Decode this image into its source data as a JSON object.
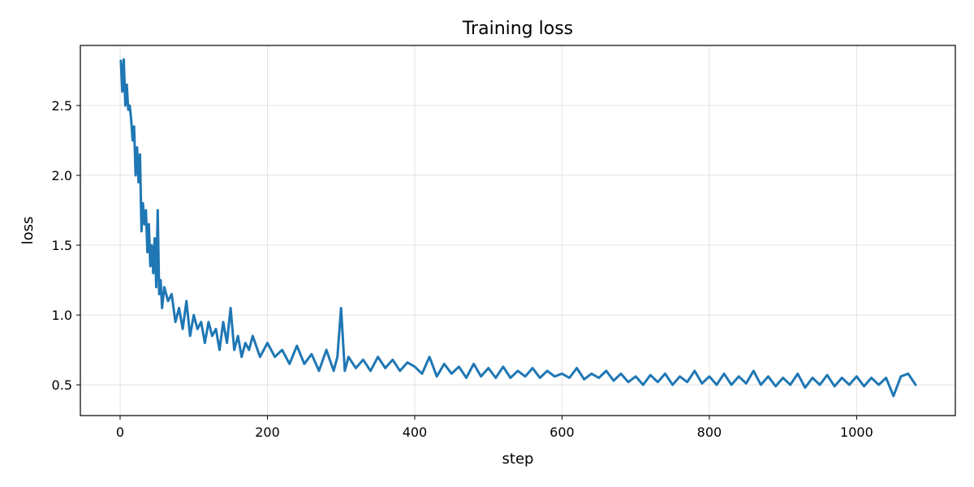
{
  "chart_data": {
    "type": "line",
    "title": "Training loss",
    "xlabel": "step",
    "ylabel": "loss",
    "xlim": [
      -54,
      1134
    ],
    "ylim": [
      0.28,
      2.93
    ],
    "x_ticks": [
      0,
      200,
      400,
      600,
      800,
      1000
    ],
    "x_tick_labels": [
      "0",
      "200",
      "400",
      "600",
      "800",
      "1000"
    ],
    "y_ticks": [
      0.5,
      1.0,
      1.5,
      2.0,
      2.5
    ],
    "y_tick_labels": [
      "0.5",
      "1.0",
      "1.5",
      "2.0",
      "2.5"
    ],
    "grid": true,
    "color": "#1f77b4",
    "series": [
      {
        "x": [
          1,
          3,
          5,
          7,
          9,
          11,
          13,
          15,
          17,
          19,
          21,
          23,
          25,
          27,
          29,
          31,
          33,
          35,
          37,
          39,
          41,
          43,
          45,
          47,
          49,
          51,
          53,
          55,
          57,
          60,
          65,
          70,
          75,
          80,
          85,
          90,
          95,
          100,
          105,
          110,
          115,
          120,
          125,
          130,
          135,
          140,
          145,
          150,
          155,
          160,
          165,
          170,
          175,
          180,
          190,
          200,
          210,
          220,
          230,
          240,
          250,
          260,
          270,
          280,
          290,
          295,
          300,
          305,
          310,
          320,
          330,
          340,
          350,
          360,
          370,
          380,
          390,
          400,
          410,
          420,
          430,
          440,
          450,
          460,
          470,
          480,
          490,
          500,
          510,
          520,
          530,
          540,
          550,
          560,
          570,
          580,
          590,
          600,
          610,
          620,
          630,
          640,
          650,
          660,
          670,
          680,
          690,
          700,
          710,
          720,
          730,
          740,
          750,
          760,
          770,
          780,
          790,
          800,
          810,
          820,
          830,
          840,
          850,
          860,
          870,
          880,
          890,
          900,
          910,
          920,
          930,
          940,
          950,
          960,
          970,
          980,
          990,
          1000,
          1010,
          1020,
          1030,
          1040,
          1050,
          1060,
          1070,
          1080
        ],
        "values": [
          2.82,
          2.6,
          2.83,
          2.5,
          2.65,
          2.47,
          2.5,
          2.4,
          2.25,
          2.35,
          2.0,
          2.2,
          1.95,
          2.15,
          1.6,
          1.8,
          1.65,
          1.75,
          1.45,
          1.65,
          1.35,
          1.5,
          1.3,
          1.55,
          1.2,
          1.75,
          1.15,
          1.25,
          1.05,
          1.2,
          1.1,
          1.15,
          0.95,
          1.05,
          0.9,
          1.1,
          0.85,
          1.0,
          0.9,
          0.95,
          0.8,
          0.95,
          0.85,
          0.9,
          0.75,
          0.95,
          0.8,
          1.05,
          0.75,
          0.85,
          0.7,
          0.8,
          0.75,
          0.85,
          0.7,
          0.8,
          0.7,
          0.75,
          0.65,
          0.78,
          0.65,
          0.72,
          0.6,
          0.75,
          0.6,
          0.7,
          1.05,
          0.6,
          0.7,
          0.62,
          0.68,
          0.6,
          0.7,
          0.62,
          0.68,
          0.6,
          0.66,
          0.63,
          0.58,
          0.7,
          0.56,
          0.65,
          0.58,
          0.63,
          0.55,
          0.65,
          0.56,
          0.62,
          0.55,
          0.63,
          0.55,
          0.6,
          0.56,
          0.62,
          0.55,
          0.6,
          0.56,
          0.58,
          0.55,
          0.62,
          0.54,
          0.58,
          0.55,
          0.6,
          0.53,
          0.58,
          0.52,
          0.56,
          0.5,
          0.57,
          0.52,
          0.58,
          0.5,
          0.56,
          0.52,
          0.6,
          0.51,
          0.56,
          0.5,
          0.58,
          0.5,
          0.56,
          0.51,
          0.6,
          0.5,
          0.56,
          0.49,
          0.55,
          0.5,
          0.58,
          0.48,
          0.55,
          0.5,
          0.57,
          0.49,
          0.55,
          0.5,
          0.56,
          0.49,
          0.55,
          0.5,
          0.55,
          0.42,
          0.56,
          0.58,
          0.5
        ]
      }
    ]
  }
}
